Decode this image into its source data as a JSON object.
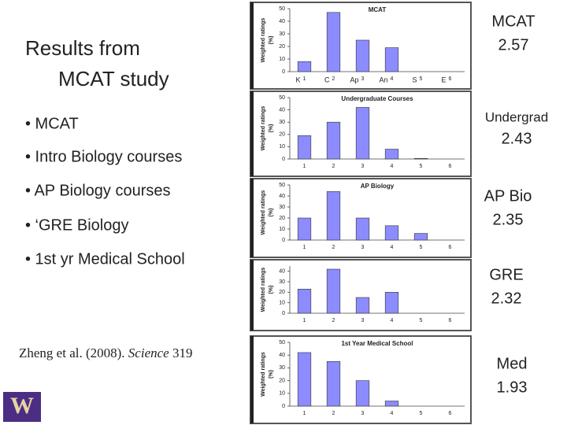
{
  "slide": {
    "title_lines": [
      "Results from",
      "MCAT study"
    ],
    "bullets": [
      "• MCAT",
      "• Intro Biology courses",
      "• AP Biology courses",
      "• ‘GRE Biology",
      "• 1st yr Medical School"
    ],
    "citation": {
      "authors": "Zheng et al. (2008).",
      "journal": "Science",
      "volume": 319
    },
    "logo": "W",
    "scores": [
      {
        "label": "MCAT",
        "value": 2.57
      },
      {
        "label": "Undergrad",
        "value": 2.43
      },
      {
        "label": "AP Bio",
        "value": 2.35
      },
      {
        "label": "GRE",
        "value": 2.32
      },
      {
        "label": "Med",
        "value": 1.93
      }
    ]
  },
  "chart_data": [
    {
      "type": "bar",
      "title": "MCAT",
      "ylabel": [
        "Weighted ratings",
        "(%)"
      ],
      "categories": [
        "1",
        "2",
        "3",
        "4",
        "5",
        "6"
      ],
      "category_annotations": [
        "K",
        "C",
        "Ap",
        "An",
        "S",
        "E"
      ],
      "values": [
        8,
        47,
        25,
        19,
        0,
        0
      ],
      "color": "#8c8cff",
      "ylim": [
        0,
        50
      ],
      "yticks": [
        0,
        10,
        20,
        30,
        40,
        50
      ]
    },
    {
      "type": "bar",
      "title": "Undergraduate Courses",
      "ylabel": [
        "Weighted ratings",
        "(%)"
      ],
      "categories": [
        "1",
        "2",
        "3",
        "4",
        "5",
        "6"
      ],
      "values": [
        19,
        30,
        42,
        8,
        0.5,
        0
      ],
      "color": "#8c8cff",
      "ylim": [
        0,
        50
      ],
      "yticks": [
        0,
        10,
        20,
        30,
        40,
        50
      ]
    },
    {
      "type": "bar",
      "title": "AP Biology",
      "ylabel": [
        "Weighted ratings",
        "(%)"
      ],
      "categories": [
        "1",
        "2",
        "3",
        "4",
        "5",
        "6"
      ],
      "values": [
        20,
        44,
        20,
        13,
        6,
        0
      ],
      "color": "#8c8cff",
      "ylim": [
        0,
        50
      ],
      "yticks": [
        0,
        10,
        20,
        30,
        40,
        50
      ]
    },
    {
      "type": "bar",
      "ylabel": [
        "Weighted ratings",
        "(%)"
      ],
      "categories": [
        "1",
        "2",
        "3",
        "4",
        "5",
        "6"
      ],
      "values": [
        23,
        42,
        15,
        20,
        0,
        0
      ],
      "color": "#8c8cff",
      "ylim": [
        0,
        45
      ],
      "yticks": [
        0,
        10,
        20,
        30,
        40
      ]
    },
    {
      "type": "bar",
      "title": "1st Year Medical School",
      "ylabel": [
        "Weighted ratings",
        "(%)"
      ],
      "categories": [
        "1",
        "2",
        "3",
        "4",
        "5",
        "6"
      ],
      "values": [
        42,
        35,
        20,
        4,
        0,
        0
      ],
      "color": "#8c8cff",
      "ylim": [
        0,
        50
      ],
      "yticks": [
        0,
        10,
        20,
        30,
        40,
        50
      ]
    }
  ]
}
